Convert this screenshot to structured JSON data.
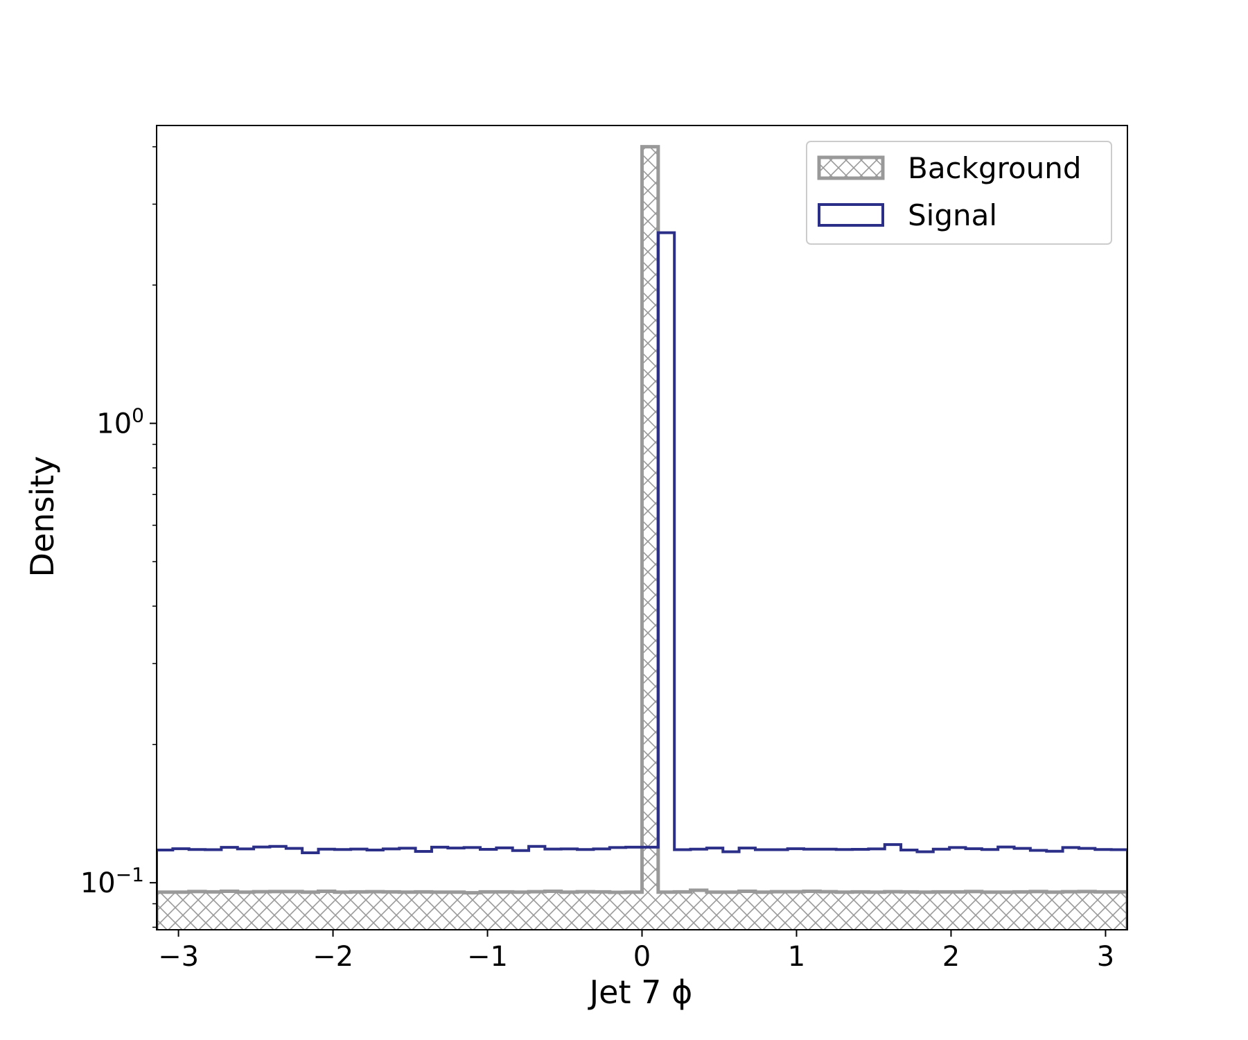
{
  "chart_data": {
    "type": "histogram",
    "xlabel": "Jet 7 ϕ",
    "ylabel": "Density",
    "yscale": "log",
    "xlim": [
      -3.1416,
      3.1416
    ],
    "ylim": [
      0.079,
      4.45
    ],
    "xticks": [
      -3,
      -2,
      -1,
      0,
      1,
      2,
      3
    ],
    "xtick_labels": [
      "−3",
      "−2",
      "−1",
      "0",
      "1",
      "2",
      "3"
    ],
    "yticks": [
      {
        "value": 0.1,
        "base": "10",
        "exp": "−1"
      },
      {
        "value": 1,
        "base": "10",
        "exp": "0"
      }
    ],
    "legend": {
      "location": "upper right",
      "entries": [
        "Background",
        "Signal"
      ]
    },
    "bins": 60,
    "series": [
      {
        "name": "Background",
        "style": "hatched-filled",
        "color": "#999999",
        "values": [
          0.0954,
          0.0954,
          0.0957,
          0.0955,
          0.0958,
          0.0954,
          0.0956,
          0.0957,
          0.0957,
          0.0954,
          0.0958,
          0.0954,
          0.0955,
          0.0956,
          0.0955,
          0.0954,
          0.0955,
          0.0954,
          0.0954,
          0.0951,
          0.0955,
          0.0955,
          0.0954,
          0.0956,
          0.0958,
          0.0954,
          0.0956,
          0.0955,
          0.0953,
          0.0954,
          4.0,
          0.0954,
          0.0955,
          0.0963,
          0.0954,
          0.0954,
          0.0958,
          0.0954,
          0.0956,
          0.0956,
          0.0958,
          0.0956,
          0.0954,
          0.0955,
          0.0954,
          0.0956,
          0.0955,
          0.0954,
          0.0955,
          0.0955,
          0.0957,
          0.0954,
          0.0954,
          0.0955,
          0.0957,
          0.0954,
          0.0956,
          0.0957,
          0.0955,
          0.0955
        ]
      },
      {
        "name": "Signal",
        "style": "step",
        "color": "#2b2f88",
        "values": [
          0.1178,
          0.1186,
          0.1181,
          0.118,
          0.1194,
          0.1185,
          0.1196,
          0.12,
          0.1188,
          0.1162,
          0.1183,
          0.1181,
          0.1184,
          0.1178,
          0.1185,
          0.1189,
          0.117,
          0.1195,
          0.119,
          0.1193,
          0.1182,
          0.1191,
          0.1175,
          0.12,
          0.1184,
          0.1185,
          0.1181,
          0.1185,
          0.1193,
          0.1195,
          0.1195,
          2.6,
          0.118,
          0.1183,
          0.119,
          0.1168,
          0.119,
          0.118,
          0.118,
          0.1186,
          0.1183,
          0.1183,
          0.1181,
          0.1182,
          0.1185,
          0.1211,
          0.1178,
          0.1168,
          0.1183,
          0.1193,
          0.1186,
          0.1181,
          0.1196,
          0.1188,
          0.1176,
          0.1171,
          0.1193,
          0.1188,
          0.1181,
          0.118
        ]
      }
    ]
  }
}
